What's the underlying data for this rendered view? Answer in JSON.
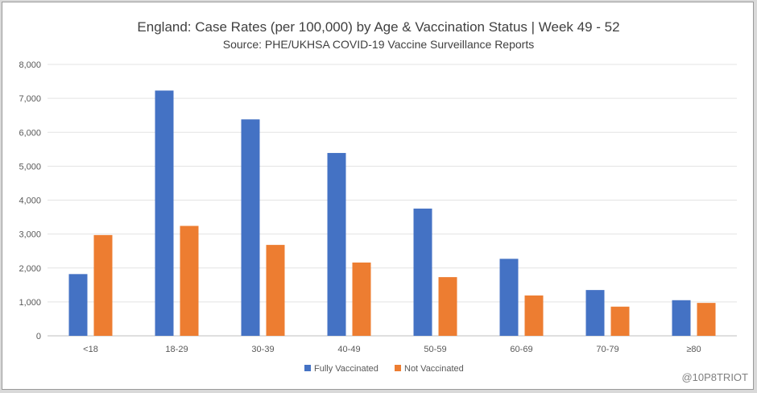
{
  "chart_data": {
    "type": "bar",
    "title": "England: Case Rates (per 100,000) by Age & Vaccination Status | Week 49 - 52",
    "subtitle": "Source: PHE/UKHSA COVID-19 Vaccine Surveillance Reports",
    "xlabel": "",
    "ylabel": "",
    "ylim": [
      0,
      8000
    ],
    "y_ticks": [
      "0",
      "1,000",
      "2,000",
      "3,000",
      "4,000",
      "5,000",
      "6,000",
      "7,000",
      "8,000"
    ],
    "y_tick_values": [
      0,
      1000,
      2000,
      3000,
      4000,
      5000,
      6000,
      7000,
      8000
    ],
    "grid": true,
    "legend_position": "bottom",
    "categories": [
      "<18",
      "18-29",
      "30-39",
      "40-49",
      "50-59",
      "60-69",
      "70-79",
      "≥80"
    ],
    "series": [
      {
        "name": "Fully Vaccinated",
        "color": "#4472c4",
        "values": [
          1820,
          7230,
          6380,
          5390,
          3750,
          2270,
          1350,
          1050
        ]
      },
      {
        "name": "Not Vaccinated",
        "color": "#ed7d31",
        "values": [
          2970,
          3240,
          2680,
          2160,
          1730,
          1190,
          860,
          970
        ]
      }
    ]
  },
  "watermark": "@10P8TRIOT"
}
